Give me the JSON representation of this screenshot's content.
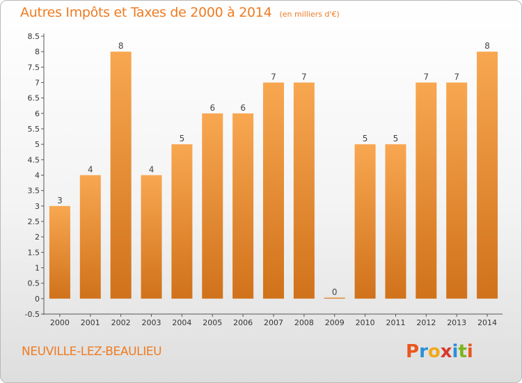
{
  "header": {
    "title": "Autres Impôts et Taxes de 2000 à 2014",
    "unit": "(en milliers d'€)"
  },
  "footer": {
    "commune": "NEUVILLE-LEZ-BEAULIEU",
    "logo_letters": [
      "P",
      "r",
      "o",
      "x",
      "i",
      "t",
      "i"
    ],
    "logo_colors": [
      "#e8581c",
      "#2b8fd6",
      "#f0a81c",
      "#d63a2b",
      "#2b8fd6",
      "#7ab51d",
      "#e8581c"
    ]
  },
  "colors": {
    "bar_top": "#f8a751",
    "bar_bottom": "#d0721b",
    "accent": "#ee7b22"
  },
  "chart_data": {
    "type": "bar",
    "categories": [
      "2000",
      "2001",
      "2002",
      "2003",
      "2004",
      "2005",
      "2006",
      "2007",
      "2008",
      "2009",
      "2010",
      "2011",
      "2012",
      "2013",
      "2014"
    ],
    "values": [
      3,
      4,
      8,
      4,
      5,
      6,
      6,
      7,
      7,
      0,
      5,
      5,
      7,
      7,
      8
    ],
    "data_labels": [
      "3",
      "4",
      "8",
      "4",
      "5",
      "6",
      "6",
      "7",
      "7",
      "0",
      "5",
      "5",
      "7",
      "7",
      "8"
    ],
    "y_ticks": [
      "-0.5",
      "0",
      "0.5",
      "1",
      "1.5",
      "2",
      "2.5",
      "3",
      "3.5",
      "4",
      "4.5",
      "5",
      "5.5",
      "6",
      "6.5",
      "7",
      "7.5",
      "8",
      "8.5"
    ],
    "ylim": [
      -0.5,
      8.5
    ],
    "grid": false,
    "legend": "none"
  }
}
